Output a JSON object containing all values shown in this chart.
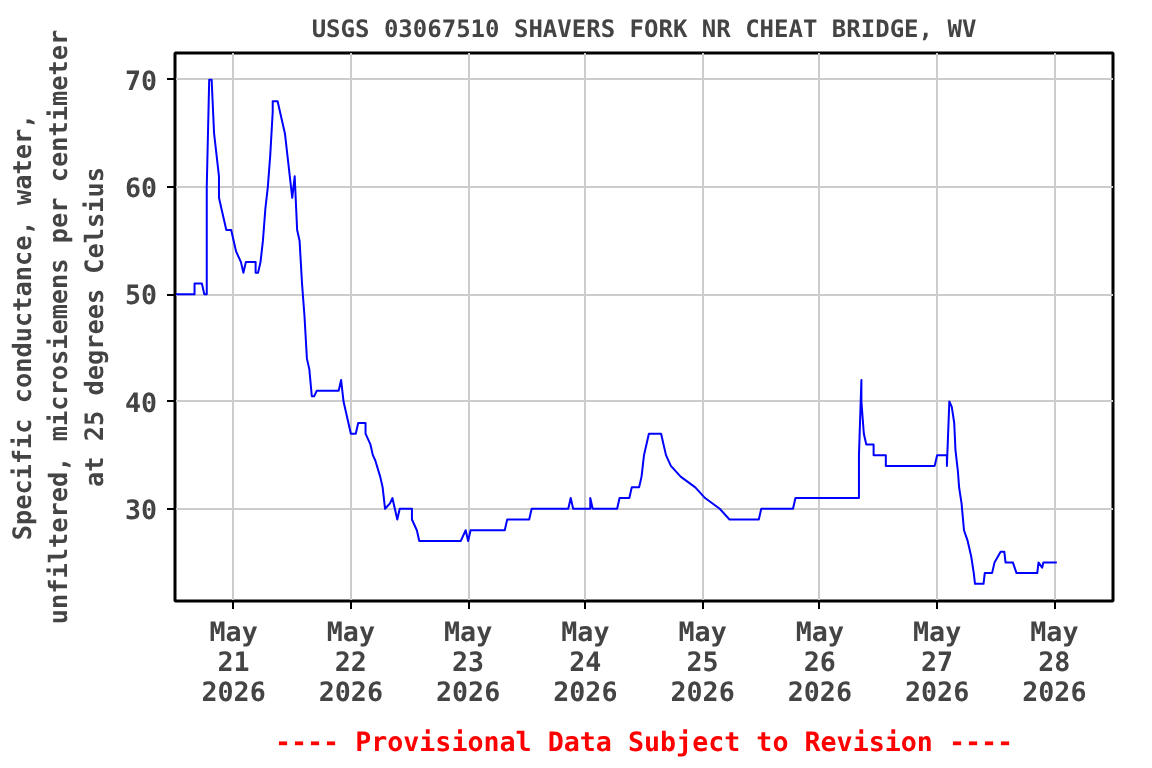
{
  "chart_data": {
    "type": "line",
    "title": "USGS 03067510 SHAVERS FORK NR CHEAT BRIDGE, WV",
    "ylabel": "Specific conductance, water,\nunfiltered, microsiemens per centimeter\nat 25 degrees Celsius",
    "annotations": [
      "---- Provisional Data Subject to Revision ----"
    ],
    "xlim": [
      "2026-05-20T12:00",
      "2026-05-28T12:00"
    ],
    "ylim": [
      21.4,
      72.5
    ],
    "yticks": [
      30,
      40,
      50,
      60,
      70
    ],
    "xticks": [
      {
        "value": "2026-05-21",
        "label": "May\n21\n2026"
      },
      {
        "value": "2026-05-22",
        "label": "May\n22\n2026"
      },
      {
        "value": "2026-05-23",
        "label": "May\n23\n2026"
      },
      {
        "value": "2026-05-24",
        "label": "May\n24\n2026"
      },
      {
        "value": "2026-05-25",
        "label": "May\n25\n2026"
      },
      {
        "value": "2026-05-26",
        "label": "May\n26\n2026"
      },
      {
        "value": "2026-05-27",
        "label": "May\n27\n2026"
      },
      {
        "value": "2026-05-28",
        "label": "May\n28\n2026"
      }
    ],
    "grid": true,
    "line_style": "solid",
    "series": [
      {
        "color": "#0000ff",
        "x": [
          "2026-05-20T12:00",
          "2026-05-20T16:00",
          "2026-05-20T16:00",
          "2026-05-20T17:30",
          "2026-05-20T18:00",
          "2026-05-20T18:30",
          "2026-05-20T18:30",
          "2026-05-20T19:00",
          "2026-05-20T19:30",
          "2026-05-20T20:00",
          "2026-05-20T20:30",
          "2026-05-20T21:00",
          "2026-05-20T21:00",
          "2026-05-20T21:30",
          "2026-05-20T22:00",
          "2026-05-20T22:30",
          "2026-05-20T23:30",
          "2026-05-21T00:00",
          "2026-05-21T00:30",
          "2026-05-21T01:30",
          "2026-05-21T02:00",
          "2026-05-21T02:30",
          "2026-05-21T04:30",
          "2026-05-21T04:30",
          "2026-05-21T05:00",
          "2026-05-21T05:30",
          "2026-05-21T06:00",
          "2026-05-21T06:30",
          "2026-05-21T07:00",
          "2026-05-21T07:30",
          "2026-05-21T08:00",
          "2026-05-21T08:00",
          "2026-05-21T09:00",
          "2026-05-21T09:30",
          "2026-05-21T10:00",
          "2026-05-21T10:30",
          "2026-05-21T11:00",
          "2026-05-21T11:30",
          "2026-05-21T12:00",
          "2026-05-21T12:30",
          "2026-05-21T13:00",
          "2026-05-21T13:30",
          "2026-05-21T13:45",
          "2026-05-21T14:00",
          "2026-05-21T14:30",
          "2026-05-21T15:00",
          "2026-05-21T15:30",
          "2026-05-21T16:00",
          "2026-05-21T16:30",
          "2026-05-21T17:00",
          "2026-05-21T21:30",
          "2026-05-21T22:00",
          "2026-05-21T22:30",
          "2026-05-21T23:00",
          "2026-05-21T23:30",
          "2026-05-22T00:00",
          "2026-05-22T01:00",
          "2026-05-22T01:30",
          "2026-05-22T03:00",
          "2026-05-22T03:00",
          "2026-05-22T04:00",
          "2026-05-22T04:30",
          "2026-05-22T05:00",
          "2026-05-22T06:00",
          "2026-05-22T06:30",
          "2026-05-22T07:00",
          "2026-05-22T08:00",
          "2026-05-22T08:30",
          "2026-05-22T09:00",
          "2026-05-22T09:30",
          "2026-05-22T10:00",
          "2026-05-22T12:30",
          "2026-05-22T12:30",
          "2026-05-22T13:30",
          "2026-05-22T14:00",
          "2026-05-22T22:30",
          "2026-05-22T23:30",
          "2026-05-23T00:00",
          "2026-05-23T00:30",
          "2026-05-23T07:30",
          "2026-05-23T08:00",
          "2026-05-23T12:30",
          "2026-05-23T13:00",
          "2026-05-23T20:30",
          "2026-05-23T21:00",
          "2026-05-23T21:30",
          "2026-05-24T01:00",
          "2026-05-24T01:00",
          "2026-05-24T01:30",
          "2026-05-24T06:30",
          "2026-05-24T07:00",
          "2026-05-24T09:00",
          "2026-05-24T09:30",
          "2026-05-24T11:00",
          "2026-05-24T11:30",
          "2026-05-24T12:00",
          "2026-05-24T12:30",
          "2026-05-24T13:00",
          "2026-05-24T15:30",
          "2026-05-24T16:00",
          "2026-05-24T16:30",
          "2026-05-24T17:30",
          "2026-05-24T19:30",
          "2026-05-24T22:30",
          "2026-05-25T00:30",
          "2026-05-25T03:30",
          "2026-05-25T05:30",
          "2026-05-25T11:30",
          "2026-05-25T12:00",
          "2026-05-25T18:30",
          "2026-05-25T19:00",
          "2026-05-26T08:00",
          "2026-05-26T08:00",
          "2026-05-26T08:30",
          "2026-05-26T08:30",
          "2026-05-26T09:00",
          "2026-05-26T09:30",
          "2026-05-26T11:00",
          "2026-05-26T11:00",
          "2026-05-26T13:30",
          "2026-05-26T13:30",
          "2026-05-26T23:30",
          "2026-05-27T00:00",
          "2026-05-27T02:00",
          "2026-05-27T02:00",
          "2026-05-27T02:30",
          "2026-05-27T03:00",
          "2026-05-27T03:30",
          "2026-05-27T03:45",
          "2026-05-27T04:15",
          "2026-05-27T04:30",
          "2026-05-27T05:00",
          "2026-05-27T05:30",
          "2026-05-27T06:15",
          "2026-05-27T07:00",
          "2026-05-27T07:30",
          "2026-05-27T07:45",
          "2026-05-27T09:30",
          "2026-05-27T09:45",
          "2026-05-27T11:15",
          "2026-05-27T11:45",
          "2026-05-27T13:00",
          "2026-05-27T13:45",
          "2026-05-27T14:00",
          "2026-05-27T15:30",
          "2026-05-27T16:15",
          "2026-05-27T20:30",
          "2026-05-27T20:45",
          "2026-05-27T21:30",
          "2026-05-27T21:45",
          "2026-05-28T00:30"
        ],
        "values": [
          50,
          50,
          51,
          51,
          50,
          50,
          60,
          70,
          70,
          65,
          63,
          61,
          59,
          58,
          57,
          56,
          56,
          55,
          54,
          53,
          52,
          53,
          53,
          52,
          52,
          53,
          55,
          58,
          60,
          63,
          67,
          68,
          68,
          67,
          66,
          65,
          63,
          61,
          59,
          61,
          56,
          55,
          53,
          51,
          48,
          44,
          43,
          40.5,
          40.5,
          41,
          41,
          42,
          40,
          39,
          38,
          37,
          37,
          38,
          38,
          37,
          36,
          35,
          34.5,
          33,
          32,
          30,
          30.5,
          31,
          30,
          29,
          30,
          30,
          29,
          28,
          27,
          27,
          28,
          27,
          28,
          28,
          29,
          29,
          30,
          30,
          31,
          30,
          30,
          31,
          30,
          30,
          31,
          31,
          32,
          32,
          33,
          35,
          36,
          37,
          37,
          36,
          35,
          34,
          33,
          32,
          31,
          30,
          29,
          29,
          30,
          30,
          31,
          31,
          35,
          42,
          40,
          37,
          36,
          36,
          35,
          35,
          34,
          34,
          35,
          35,
          34,
          40,
          39.5,
          38,
          35.5,
          33.5,
          32,
          30.5,
          28,
          27,
          25.5,
          24,
          23,
          23,
          24,
          24,
          25,
          26,
          26,
          25,
          25,
          24,
          24,
          25,
          24.5,
          25,
          25
        ]
      }
    ]
  }
}
